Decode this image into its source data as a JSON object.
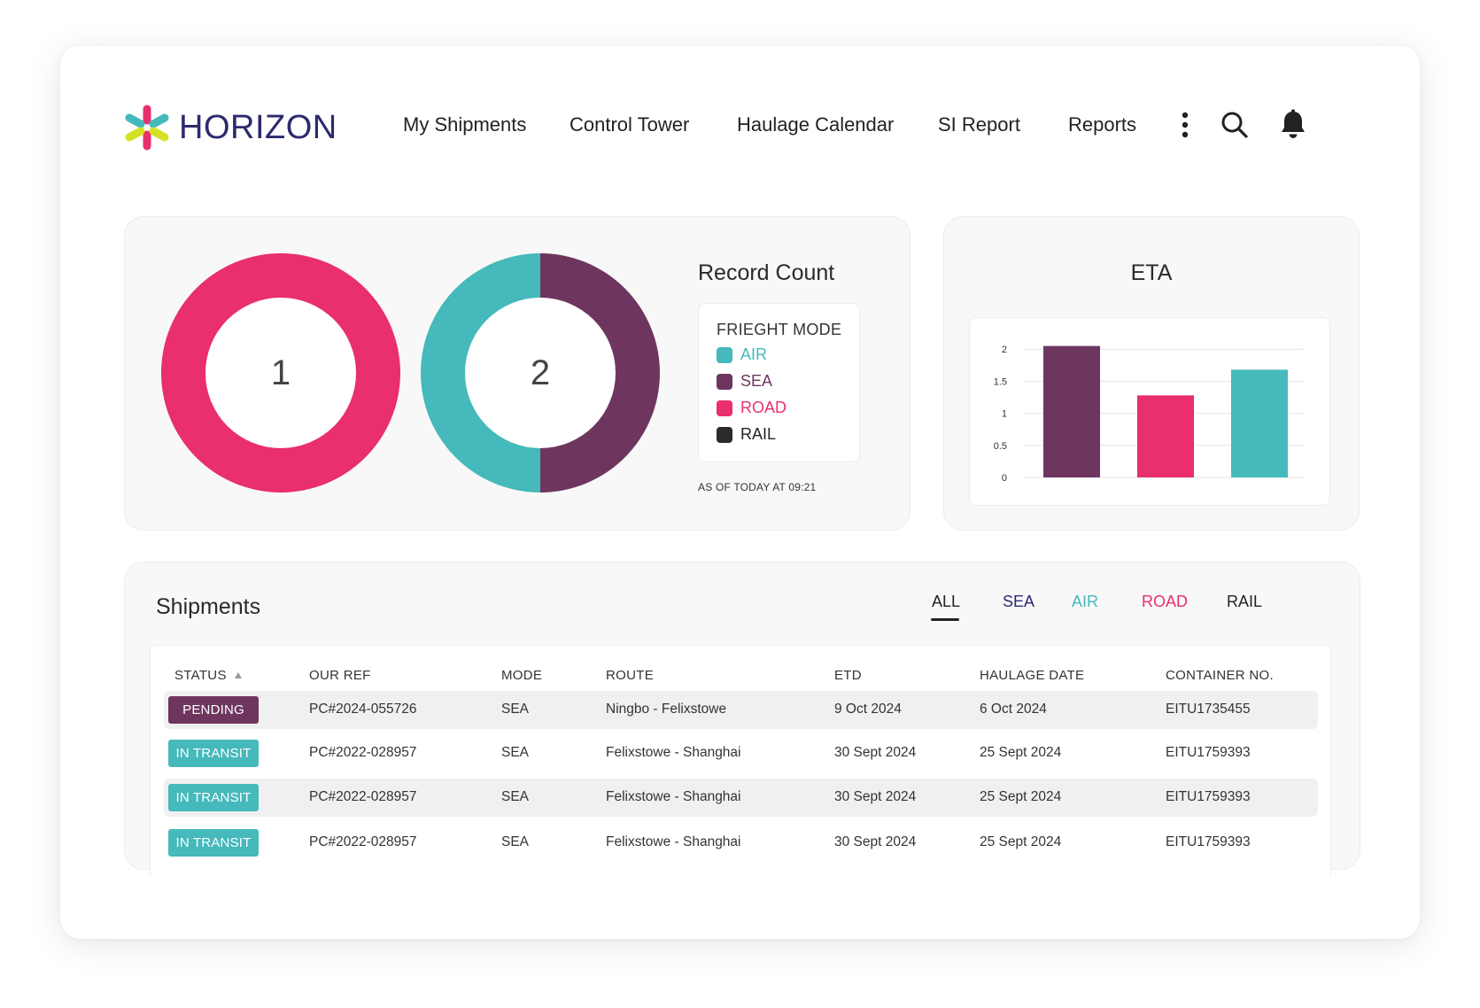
{
  "brand": {
    "name": "HORIZON"
  },
  "nav": {
    "items": [
      "My Shipments",
      "Control Tower",
      "Haulage Calendar",
      "SI Report",
      "Reports"
    ],
    "icons": [
      "more-vertical-icon",
      "search-icon",
      "bell-icon"
    ]
  },
  "record_count": {
    "title": "Record Count",
    "donuts": [
      {
        "label": "1",
        "segments": [
          {
            "mode": "ROAD",
            "value": 1
          }
        ]
      },
      {
        "label": "2",
        "segments": [
          {
            "mode": "SEA",
            "value": 1
          },
          {
            "mode": "AIR",
            "value": 1
          }
        ]
      }
    ],
    "legend_title": "FRIEGHT MODE",
    "legend": [
      {
        "label": "AIR",
        "color": "#45b9bb"
      },
      {
        "label": "SEA",
        "color": "#6e365f"
      },
      {
        "label": "ROAD",
        "color": "#e92f6c"
      },
      {
        "label": "RAIL",
        "color": "#2b2b2b"
      }
    ],
    "as_of": "AS OF TODAY AT 09:21"
  },
  "chart_data": {
    "type": "bar",
    "title": "ETA",
    "categories": [
      "",
      "",
      ""
    ],
    "values": [
      2.05,
      1.28,
      1.68
    ],
    "colors": [
      "#6e365f",
      "#e92f6c",
      "#45b9bb"
    ],
    "yticks": [
      "0",
      "0.5",
      "1",
      "1.5",
      "2"
    ],
    "ylim": [
      0,
      2.1
    ],
    "grid": true
  },
  "shipments": {
    "title": "Shipments",
    "tabs": [
      {
        "label": "ALL",
        "color": "#222222",
        "active": true
      },
      {
        "label": "SEA",
        "color": "#2b2a6e",
        "active": false
      },
      {
        "label": "AIR",
        "color": "#45b9bb",
        "active": false
      },
      {
        "label": "ROAD",
        "color": "#e92f6c",
        "active": false
      },
      {
        "label": "RAIL",
        "color": "#222222",
        "active": false
      }
    ],
    "columns": [
      "STATUS",
      "OUR REF",
      "MODE",
      "ROUTE",
      "ETD",
      "HAULAGE DATE",
      "CONTAINER NO."
    ],
    "sort_icon": "sort-up-icon",
    "rows": [
      {
        "status": "PENDING",
        "status_color": "#6e365f",
        "ref": "PC#2024-055726",
        "mode": "SEA",
        "route": "Ningbo - Felixstowe",
        "etd": "9 Oct 2024",
        "haulage": "6 Oct 2024",
        "container": "EITU1735455"
      },
      {
        "status": "IN TRANSIT",
        "status_color": "#45b9bb",
        "ref": "PC#2022-028957",
        "mode": "SEA",
        "route": "Felixstowe - Shanghai",
        "etd": "30 Sept 2024",
        "haulage": "25 Sept 2024",
        "container": "EITU1759393"
      },
      {
        "status": "IN TRANSIT",
        "status_color": "#45b9bb",
        "ref": "PC#2022-028957",
        "mode": "SEA",
        "route": "Felixstowe - Shanghai",
        "etd": "30 Sept 2024",
        "haulage": "25 Sept 2024",
        "container": "EITU1759393"
      },
      {
        "status": "IN TRANSIT",
        "status_color": "#45b9bb",
        "ref": "PC#2022-028957",
        "mode": "SEA",
        "route": "Felixstowe - Shanghai",
        "etd": "30 Sept 2024",
        "haulage": "25 Sept 2024",
        "container": "EITU1759393"
      }
    ]
  }
}
